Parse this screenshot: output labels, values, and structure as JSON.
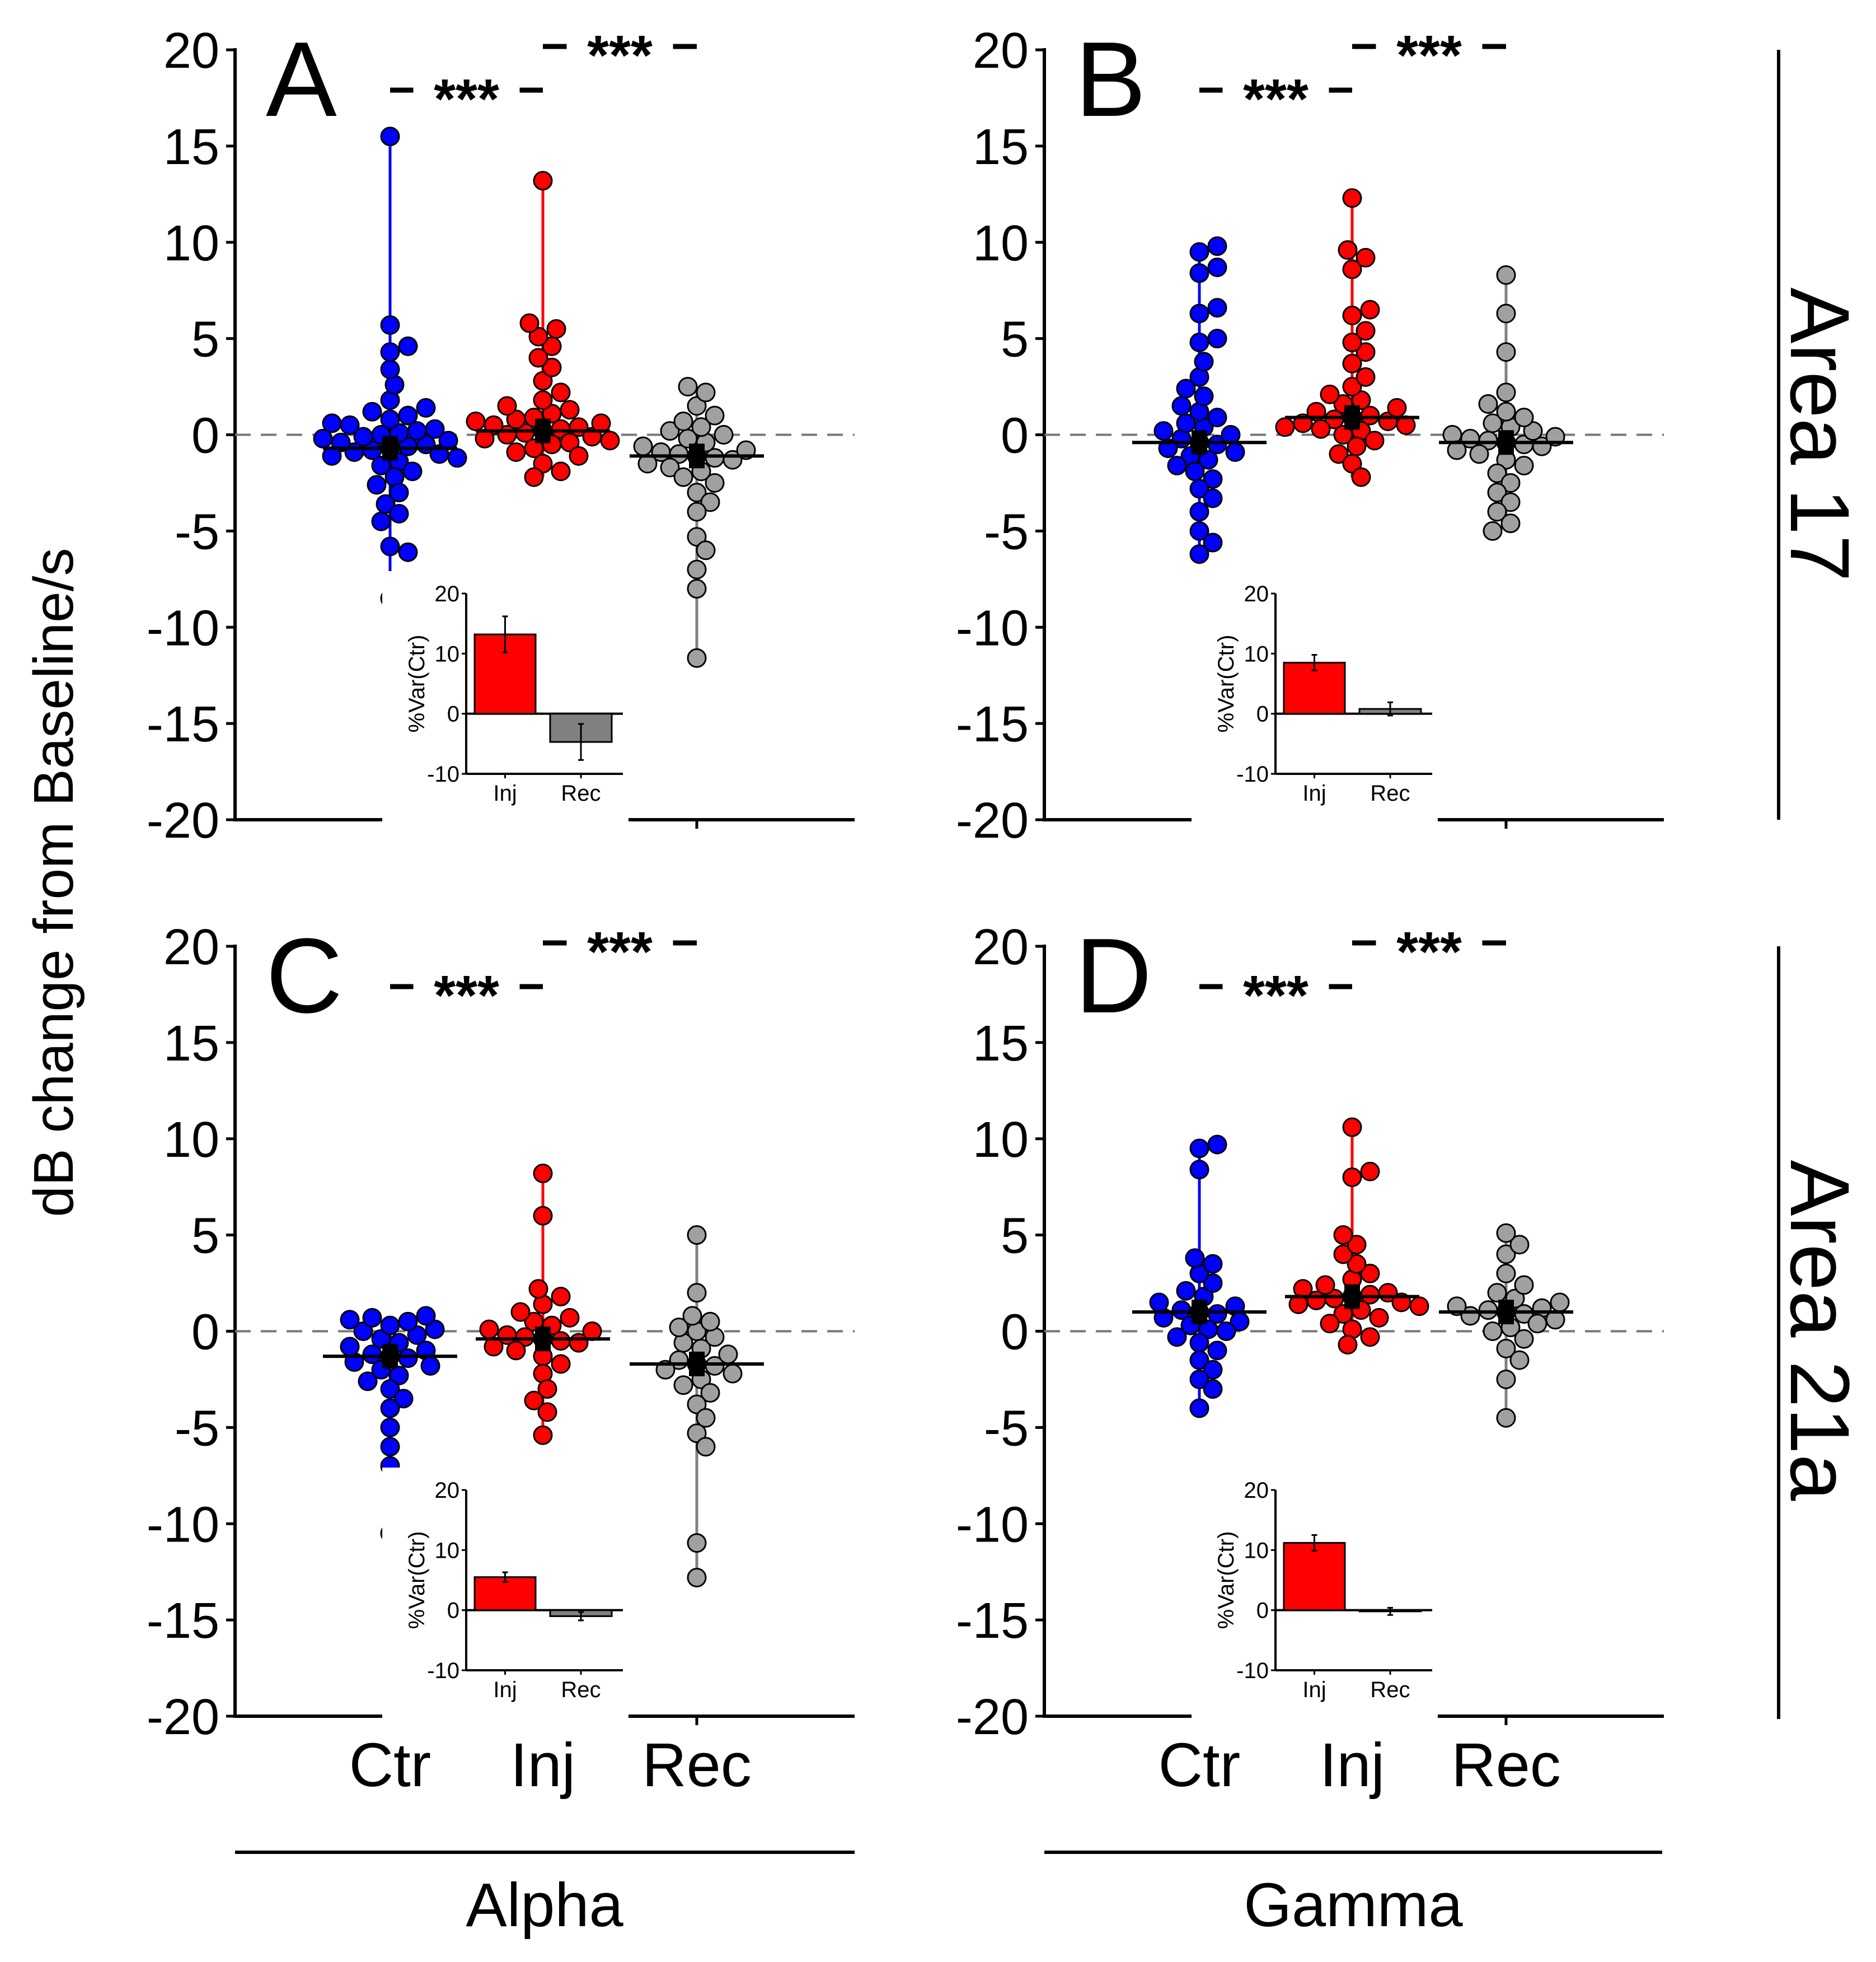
{
  "ylabel": "dB change from Baseline/s",
  "yticks": [
    "20",
    "15",
    "10",
    "5",
    "0",
    "-5",
    "-10",
    "-15",
    "-20"
  ],
  "categories": [
    "Ctr",
    "Inj",
    "Rec"
  ],
  "bands": [
    "Alpha",
    "Gamma"
  ],
  "areas": [
    "Area 17",
    "Area 21a"
  ],
  "significance": "***",
  "colors": {
    "Ctr": "#0000ff",
    "Inj": "#ff0000",
    "Rec": "#a0a0a0",
    "RecLine": "#808080",
    "RecBar": "#808080"
  },
  "inset": {
    "ylabel": "%Var(Ctr)",
    "yticks": [
      "20",
      "10",
      "0",
      "-10"
    ],
    "categories": [
      "Inj",
      "Rec"
    ]
  },
  "chart_data": [
    {
      "panel": "A",
      "type": "scatter",
      "band": "Alpha",
      "area": "Area 17",
      "ylim": [
        -20,
        20
      ],
      "means": {
        "Ctr": -0.7,
        "Inj": 0.2,
        "Rec": -1.1
      },
      "values": {
        "Ctr": [
          15.5,
          5.7,
          4.6,
          4.3,
          3.4,
          2.6,
          1.8,
          1.4,
          1.2,
          1.0,
          0.8,
          0.6,
          0.5,
          0.3,
          0.2,
          0.1,
          0,
          -0.1,
          -0.2,
          -0.3,
          -0.4,
          -0.5,
          -0.6,
          -0.7,
          -0.8,
          -0.9,
          -1.0,
          -1.1,
          -1.2,
          -1.4,
          -1.6,
          -1.9,
          -2.2,
          -2.6,
          -3.0,
          -3.6,
          -4.1,
          -4.5,
          -5.8,
          -6.1,
          -8.5
        ],
        "Inj": [
          13.2,
          5.8,
          5.5,
          5.1,
          4.6,
          4.0,
          3.5,
          2.8,
          2.2,
          1.8,
          1.5,
          1.3,
          1.1,
          0.9,
          0.8,
          0.7,
          0.6,
          0.5,
          0.4,
          0.3,
          0.2,
          0.1,
          0,
          -0.1,
          -0.2,
          -0.3,
          -0.4,
          -0.5,
          -0.7,
          -0.9,
          -1.1,
          -1.5,
          -1.9,
          -2.2
        ],
        "Rec": [
          2.5,
          2.2,
          1.5,
          1.0,
          0.7,
          0.4,
          0.2,
          0,
          -0.2,
          -0.4,
          -0.6,
          -0.8,
          -0.9,
          -1.0,
          -1.1,
          -1.2,
          -1.3,
          -1.5,
          -1.7,
          -1.9,
          -2.2,
          -2.5,
          -3.0,
          -3.5,
          -4.0,
          -5.3,
          -6.0,
          -7.0,
          -8.0,
          -11.6
        ]
      }
    },
    {
      "panel": "B",
      "type": "scatter",
      "band": "Gamma",
      "area": "Area 17",
      "ylim": [
        -20,
        20
      ],
      "means": {
        "Ctr": -0.4,
        "Inj": 0.9,
        "Rec": -0.4
      },
      "values": {
        "Ctr": [
          9.8,
          9.5,
          8.7,
          8.4,
          6.6,
          6.3,
          5.0,
          4.8,
          3.8,
          3.0,
          2.4,
          2.0,
          1.5,
          1.2,
          0.9,
          0.6,
          0.4,
          0.2,
          0,
          -0.2,
          -0.4,
          -0.5,
          -0.7,
          -0.9,
          -1.1,
          -1.3,
          -1.6,
          -1.9,
          -2.3,
          -2.8,
          -3.3,
          -4.0,
          -5.0,
          -5.6,
          -6.2
        ],
        "Inj": [
          12.3,
          9.6,
          9.2,
          8.6,
          6.5,
          6.2,
          5.4,
          4.8,
          4.3,
          3.7,
          3.0,
          2.5,
          2.1,
          1.8,
          1.6,
          1.4,
          1.2,
          1.0,
          0.9,
          0.8,
          0.7,
          0.6,
          0.5,
          0.4,
          0.3,
          0.2,
          0,
          -0.3,
          -0.6,
          -1.0,
          -1.5,
          -2.2
        ],
        "Rec": [
          8.3,
          6.3,
          4.3,
          2.2,
          1.6,
          1.2,
          0.9,
          0.6,
          0.4,
          0.2,
          0,
          -0.1,
          -0.2,
          -0.3,
          -0.4,
          -0.5,
          -0.6,
          -0.8,
          -1.0,
          -1.3,
          -1.6,
          -2.0,
          -2.5,
          -3.0,
          -3.5,
          -4.0,
          -4.6,
          -5.0
        ]
      }
    },
    {
      "panel": "C",
      "type": "scatter",
      "band": "Alpha",
      "area": "Area 21a",
      "ylim": [
        -20,
        20
      ],
      "means": {
        "Ctr": -1.3,
        "Inj": -0.4,
        "Rec": -1.7
      },
      "values": {
        "Ctr": [
          0.8,
          0.7,
          0.6,
          0.5,
          0.3,
          0.1,
          0,
          -0.2,
          -0.4,
          -0.6,
          -0.8,
          -1.0,
          -1.2,
          -1.3,
          -1.4,
          -1.6,
          -1.8,
          -2.0,
          -2.3,
          -2.6,
          -3.0,
          -3.5,
          -4.0,
          -5.0,
          -6.0,
          -7.0,
          -10.5
        ],
        "Inj": [
          8.2,
          6.0,
          2.2,
          1.8,
          1.4,
          1.0,
          0.7,
          0.5,
          0.3,
          0.1,
          0,
          -0.2,
          -0.3,
          -0.4,
          -0.5,
          -0.6,
          -0.8,
          -1.0,
          -1.3,
          -1.7,
          -2.2,
          -3.0,
          -3.6,
          -4.2,
          -5.4
        ],
        "Rec": [
          5.0,
          2.0,
          0.8,
          0.5,
          0.2,
          0,
          -0.3,
          -0.6,
          -0.9,
          -1.2,
          -1.5,
          -1.7,
          -1.8,
          -2.0,
          -2.2,
          -2.5,
          -2.8,
          -3.2,
          -3.8,
          -4.5,
          -5.3,
          -6.0,
          -11.0,
          -12.8
        ]
      }
    },
    {
      "panel": "D",
      "type": "scatter",
      "band": "Gamma",
      "area": "Area 21a",
      "ylim": [
        -20,
        20
      ],
      "means": {
        "Ctr": 1.0,
        "Inj": 1.8,
        "Rec": 1.0
      },
      "values": {
        "Ctr": [
          9.7,
          9.5,
          8.4,
          3.8,
          3.5,
          3.0,
          2.5,
          2.1,
          1.8,
          1.5,
          1.3,
          1.1,
          1.0,
          0.9,
          0.7,
          0.5,
          0.3,
          0.1,
          0,
          -0.3,
          -0.6,
          -1.0,
          -1.5,
          -2.0,
          -2.5,
          -3.0,
          -4.0
        ],
        "Inj": [
          10.6,
          8.3,
          8.0,
          5.0,
          4.5,
          4.0,
          3.5,
          3.0,
          2.7,
          2.4,
          2.2,
          2.0,
          1.9,
          1.8,
          1.7,
          1.6,
          1.5,
          1.4,
          1.3,
          1.1,
          0.9,
          0.7,
          0.4,
          0.1,
          -0.3,
          -0.7
        ],
        "Rec": [
          5.1,
          4.5,
          4.0,
          3.0,
          2.4,
          2.0,
          1.7,
          1.5,
          1.3,
          1.2,
          1.1,
          1.0,
          0.9,
          0.8,
          0.6,
          0.4,
          0.2,
          0,
          -0.4,
          -0.9,
          -1.5,
          -2.5,
          -4.5
        ]
      }
    }
  ],
  "insets": [
    {
      "panel": "A",
      "type": "bar",
      "ylim": [
        -10,
        20
      ],
      "values": {
        "Inj": 13.2,
        "Rec": -4.7
      },
      "errors": {
        "Inj": 3.0,
        "Rec": 3.0
      }
    },
    {
      "panel": "B",
      "type": "bar",
      "ylim": [
        -10,
        20
      ],
      "values": {
        "Inj": 8.5,
        "Rec": 0.8
      },
      "errors": {
        "Inj": 1.3,
        "Rec": 1.1
      }
    },
    {
      "panel": "C",
      "type": "bar",
      "ylim": [
        -10,
        20
      ],
      "values": {
        "Inj": 5.5,
        "Rec": -1.0
      },
      "errors": {
        "Inj": 0.8,
        "Rec": 0.7
      }
    },
    {
      "panel": "D",
      "type": "bar",
      "ylim": [
        -10,
        20
      ],
      "values": {
        "Inj": 11.2,
        "Rec": -0.2
      },
      "errors": {
        "Inj": 1.3,
        "Rec": 0.6
      }
    }
  ]
}
